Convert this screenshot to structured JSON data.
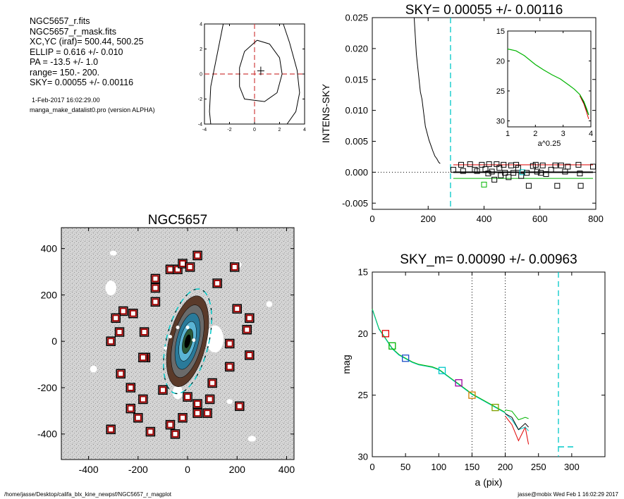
{
  "info_panel": {
    "lines": [
      "NGC5657_r.fits",
      "NGC5657_r_mask.fits",
      "XC,YC (iraf)=   500.44, 500.25",
      "ELLIP = 0.616 +/- 0.010",
      "PA    = -13.5 +/-   1.0",
      "range=  150.-  200.",
      "SKY= 0.00055 +/- 0.00116"
    ],
    "timestamp": "1-Feb-2017 16:02:29.00",
    "program": "manga_make_datalist0.pro (version ALPHA)"
  },
  "footer": {
    "path": "/home/jasse/Desktop/califa_blx_kine_newpsf/NGC5657_r_magplot",
    "user_time": "jasse@mobix  Wed Feb  1 16:02:29 2017"
  },
  "colors": {
    "cyan": "#00c8c8",
    "red": "#e00000",
    "green": "#00b400",
    "dashed_red": "#d04040",
    "marker_red": "#a00000"
  },
  "chart_data": [
    {
      "id": "center_contour",
      "type": "contour",
      "title": "",
      "xlim": [
        -4,
        4
      ],
      "ylim": [
        -4,
        4
      ],
      "xticks": [
        -4,
        -2,
        0,
        2,
        4
      ],
      "yticks": [
        -4,
        -2,
        0,
        2,
        4
      ],
      "crosshair": [
        0,
        0
      ],
      "centroid": [
        0.5,
        0.25
      ]
    },
    {
      "id": "sky_profile",
      "type": "scatter",
      "title": "SKY= 0.00055 +/- 0.00116",
      "xlabel": "",
      "ylabel": "INTENS-SKY",
      "xlim": [
        0,
        800
      ],
      "ylim": [
        -0.006,
        0.025
      ],
      "xticks": [
        0,
        200,
        400,
        600,
        800
      ],
      "yticks": [
        -0.005,
        0.0,
        0.005,
        0.01,
        0.015,
        0.02,
        0.025
      ],
      "ytick_labels": [
        "-0.005",
        "0.000",
        "0.005",
        "0.010",
        "0.015",
        "0.020",
        "0.025"
      ],
      "vline_x": 280,
      "zero_line": 0,
      "profile_x": [
        150,
        158,
        165,
        172,
        178,
        185,
        190,
        197,
        203,
        210,
        217,
        224,
        231,
        238,
        243
      ],
      "profile_y": [
        0.025,
        0.019,
        0.016,
        0.013,
        0.0118,
        0.0092,
        0.0074,
        0.0062,
        0.0052,
        0.0043,
        0.0034,
        0.0026,
        0.0022,
        0.0016,
        0.0014
      ],
      "sky_points_x": [
        290,
        318,
        325,
        350,
        367,
        375,
        392,
        400,
        405,
        415,
        418,
        428,
        437,
        445,
        455,
        460,
        470,
        475,
        488,
        497,
        505,
        515,
        522,
        533,
        537,
        553,
        560,
        575,
        585,
        590,
        603,
        610,
        622,
        640,
        655,
        662,
        676,
        690,
        700,
        738,
        743,
        746,
        790
      ],
      "sky_points_y": [
        0.0004,
        0.0012,
        0.0002,
        0.0013,
        0.0004,
        0.0002,
        0.0012,
        -0.002,
        0.0005,
        -0.0002,
        0.0013,
        0.0001,
        -0.0012,
        0.0013,
        0.0007,
        -0.0005,
        0.0012,
        -0.0001,
        -0.0008,
        0.0011,
        -0.0001,
        0.0012,
        0.0007,
        -0.0006,
        0.0,
        -0.0001,
        -0.0022,
        0.001,
        0.0012,
        0.0001,
        -0.0001,
        0.0011,
        -0.0003,
        0.0004,
        0.0011,
        -0.0022,
        0.0011,
        0.0001,
        0.0009,
        0.0012,
        -0.0002,
        -0.0022,
        0.0009
      ],
      "sky_points_color": [
        "black",
        "black",
        "black",
        "black",
        "black",
        "black",
        "black",
        "green",
        "black",
        "black",
        "black",
        "black",
        "black",
        "black",
        "black",
        "black",
        "black",
        "black",
        "black",
        "black",
        "black",
        "black",
        "black",
        "black",
        "cyan",
        "black",
        "black",
        "black",
        "black",
        "black",
        "black",
        "black",
        "black",
        "black",
        "black",
        "black",
        "black",
        "black",
        "black",
        "black",
        "black",
        "black",
        "black"
      ],
      "sky_levels": [
        {
          "color": "red",
          "value": 0.0012,
          "x": [
            290,
            790
          ]
        },
        {
          "color": "black",
          "value": 0.0,
          "x": [
            290,
            790
          ]
        },
        {
          "color": "green",
          "value": -0.001,
          "x": [
            290,
            790
          ]
        }
      ],
      "inset": {
        "xlabel": "a^0.25",
        "xlim": [
          1,
          4
        ],
        "ylim": [
          31,
          15
        ],
        "xticks": [
          1,
          2,
          3,
          4
        ],
        "yticks": [
          15,
          20,
          25,
          30
        ],
        "green_x": [
          1.0,
          1.3,
          1.6,
          2.0,
          2.3,
          2.6,
          2.9,
          3.2,
          3.4,
          3.6,
          3.75,
          3.85,
          3.92
        ],
        "green_y": [
          18.0,
          18.3,
          19.1,
          20.6,
          21.5,
          22.3,
          23.0,
          24.0,
          24.7,
          25.6,
          26.8,
          28.0,
          29.0
        ],
        "red_x": [
          3.6,
          3.75,
          3.85,
          3.92
        ],
        "red_y": [
          25.8,
          27.2,
          28.6,
          29.7
        ],
        "black_x": [
          3.6,
          3.75,
          3.85,
          3.92
        ],
        "black_y": [
          25.6,
          27.0,
          28.2,
          29.0
        ]
      }
    },
    {
      "id": "galaxy_image",
      "type": "image",
      "title": "NGC5657",
      "xlim": [
        -510,
        430
      ],
      "ylim": [
        -510,
        490
      ],
      "xticks": [
        -400,
        -200,
        0,
        200,
        400
      ],
      "yticks": [
        -400,
        -200,
        0,
        200,
        400
      ],
      "ellipse": {
        "center": [
          0,
          0
        ],
        "a": 280,
        "ellip": 0.616,
        "pa": -13.5
      },
      "sky_boxes_x": [
        40,
        -70,
        -40,
        -20,
        10,
        190,
        -130,
        -130,
        -130,
        120,
        200,
        -220,
        -260,
        -290,
        -275,
        -175,
        -310,
        -170,
        240,
        250,
        170,
        170,
        250,
        -270,
        -180,
        -230,
        -180,
        100,
        -100,
        90,
        210,
        0,
        40,
        80,
        -70,
        -20,
        -310,
        -230,
        -200,
        -150,
        40,
        -50
      ],
      "sky_boxes_y": [
        370,
        310,
        310,
        335,
        320,
        320,
        270,
        230,
        170,
        250,
        140,
        120,
        130,
        100,
        40,
        40,
        0,
        -70,
        50,
        100,
        -10,
        -110,
        -60,
        -140,
        -70,
        -200,
        -250,
        -180,
        -210,
        -250,
        -280,
        -240,
        -310,
        -310,
        -360,
        -330,
        -380,
        -290,
        -330,
        -390,
        -270,
        -400
      ],
      "dots": [
        [
          -40,
          60
        ],
        [
          0,
          60
        ],
        [
          25,
          5
        ],
        [
          -70,
          20
        ],
        [
          -90,
          -30
        ]
      ]
    },
    {
      "id": "mag_profile",
      "type": "line",
      "title": "SKY_m=  0.00090 +/- 0.00963",
      "xlabel": "a (pix)",
      "ylabel": "mag",
      "xlim": [
        0,
        350
      ],
      "ylim": [
        30,
        15
      ],
      "xticks": [
        0,
        50,
        100,
        150,
        200,
        250,
        300
      ],
      "yticks": [
        15,
        20,
        25,
        30
      ],
      "vlines_dotted": [
        150,
        200
      ],
      "vline_dashed": 280,
      "short_dash": {
        "x": [
          280,
          305
        ],
        "y": 29.2
      },
      "main_x": [
        0,
        10,
        20,
        30,
        40,
        50,
        60,
        70,
        80,
        90,
        100,
        110,
        120,
        130,
        140,
        150,
        160,
        170,
        180,
        190,
        200
      ],
      "main_y": [
        18.0,
        19.6,
        20.4,
        21.2,
        21.7,
        22.0,
        22.3,
        22.5,
        22.6,
        22.7,
        22.9,
        23.3,
        23.7,
        24.1,
        24.5,
        24.9,
        25.2,
        25.5,
        25.8,
        26.1,
        26.4
      ],
      "green_x": [
        200,
        210,
        220,
        230,
        235
      ],
      "green_y": [
        26.2,
        26.3,
        27.0,
        26.8,
        26.9
      ],
      "black_x": [
        200,
        210,
        220,
        230,
        235
      ],
      "black_y": [
        26.5,
        26.8,
        27.8,
        27.3,
        27.6
      ],
      "red_x": [
        200,
        210,
        220,
        230,
        235
      ],
      "red_y": [
        26.7,
        27.4,
        28.7,
        27.6,
        29.0
      ],
      "cyan_x": [
        200,
        210,
        220,
        230,
        235
      ],
      "cyan_y": [
        26.5,
        27.0,
        27.8,
        27.6,
        27.9
      ],
      "markers_x": [
        20,
        30,
        50,
        105,
        130,
        150,
        185
      ],
      "markers_y": [
        20.0,
        21.0,
        22.0,
        23.0,
        24.0,
        25.0,
        26.0
      ],
      "markers_color": [
        "#e00000",
        "#00b400",
        "#2050c8",
        "#00c8c8",
        "#a000a0",
        "#d08000",
        "#80a000"
      ]
    }
  ]
}
